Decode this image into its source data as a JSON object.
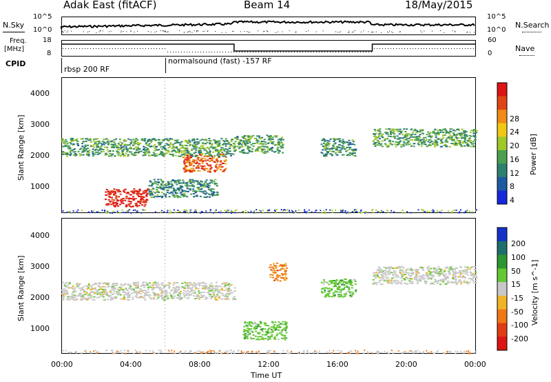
{
  "header": {
    "title": "Adak East (fitACF)",
    "beam": "Beam 14",
    "date": "18/May/2015"
  },
  "panels": {
    "nsky": {
      "label": "N.Sky",
      "right_label": "N.Search",
      "left_ticks": [
        "10^5",
        "10^0"
      ],
      "right_ticks": [
        "10^5",
        "10^0"
      ]
    },
    "freq": {
      "label_line1": "Freq.",
      "label_line2": "[MHz]",
      "left_ticks": [
        "18",
        "8"
      ],
      "right_label": "Nave",
      "right_ticks": [
        "60",
        "0"
      ]
    },
    "cpid": {
      "label": "CPID",
      "segments": [
        "rbsp 200 RF",
        "normalsound (fast) -157 RF"
      ]
    }
  },
  "chart_data": [
    {
      "type": "heatmap",
      "title": "",
      "xlabel": "",
      "ylabel": "Slant Range [km]",
      "y_ticks": [
        "1000",
        "2000",
        "3000",
        "4000"
      ],
      "ylim": [
        200,
        4500
      ],
      "colorbar": {
        "label": "Power [dB]",
        "ticks": [
          "4",
          "8",
          "12",
          "16",
          "20",
          "24",
          "28"
        ],
        "colors": [
          "#1428dc",
          "#1e5aa0",
          "#2d7f6e",
          "#4aa050",
          "#a0c828",
          "#f0c814",
          "#f08c14",
          "#e04614",
          "#dc1414"
        ]
      },
      "features": [
        {
          "start_hour": 2.5,
          "end_hour": 5.0,
          "range_km": 700,
          "power_db": 28
        },
        {
          "start_hour": 7.0,
          "end_hour": 9.5,
          "range_km": 1800,
          "power_db": 24
        },
        {
          "start_hour": 0.0,
          "end_hour": 10.0,
          "range_km": 2300,
          "power_db": 10
        },
        {
          "start_hour": 5.0,
          "end_hour": 9.0,
          "range_km": 1000,
          "power_db": 8
        },
        {
          "start_hour": 10.0,
          "end_hour": 12.8,
          "range_km": 2400,
          "power_db": 10
        },
        {
          "start_hour": 15.0,
          "end_hour": 17.0,
          "range_km": 2300,
          "power_db": 8
        },
        {
          "start_hour": 18.0,
          "end_hour": 24.0,
          "range_km": 2600,
          "power_db": 10
        }
      ]
    },
    {
      "type": "heatmap",
      "title": "",
      "xlabel": "Time UT",
      "ylabel": "Slant Range [km]",
      "y_ticks": [
        "1000",
        "2000",
        "3000",
        "4000"
      ],
      "ylim": [
        200,
        4500
      ],
      "x_ticks": [
        "00:00",
        "04:00",
        "08:00",
        "12:00",
        "16:00",
        "20:00",
        "00:00"
      ],
      "colorbar": {
        "label": "Velocity [m s^-1]",
        "ticks": [
          "200",
          "100",
          "50",
          "15",
          "-15",
          "-50",
          "-100",
          "-200"
        ],
        "colors": [
          "#1432c8",
          "#1e6e6e",
          "#2d9632",
          "#64c832",
          "#c8c8c8",
          "#f0b428",
          "#f07814",
          "#e03c14",
          "#dc1414"
        ]
      },
      "features": [
        {
          "start_hour": 0.0,
          "end_hour": 10.0,
          "range_km": 2200,
          "velocity_ms": 0
        },
        {
          "start_hour": 10.5,
          "end_hour": 13.0,
          "range_km": 950,
          "velocity_ms": 50
        },
        {
          "start_hour": 12.0,
          "end_hour": 13.0,
          "range_km": 2800,
          "velocity_ms": -50
        },
        {
          "start_hour": 15.0,
          "end_hour": 17.0,
          "range_km": 2300,
          "velocity_ms": 30
        },
        {
          "start_hour": 18.0,
          "end_hour": 24.0,
          "range_km": 2700,
          "velocity_ms": 0
        }
      ]
    }
  ]
}
